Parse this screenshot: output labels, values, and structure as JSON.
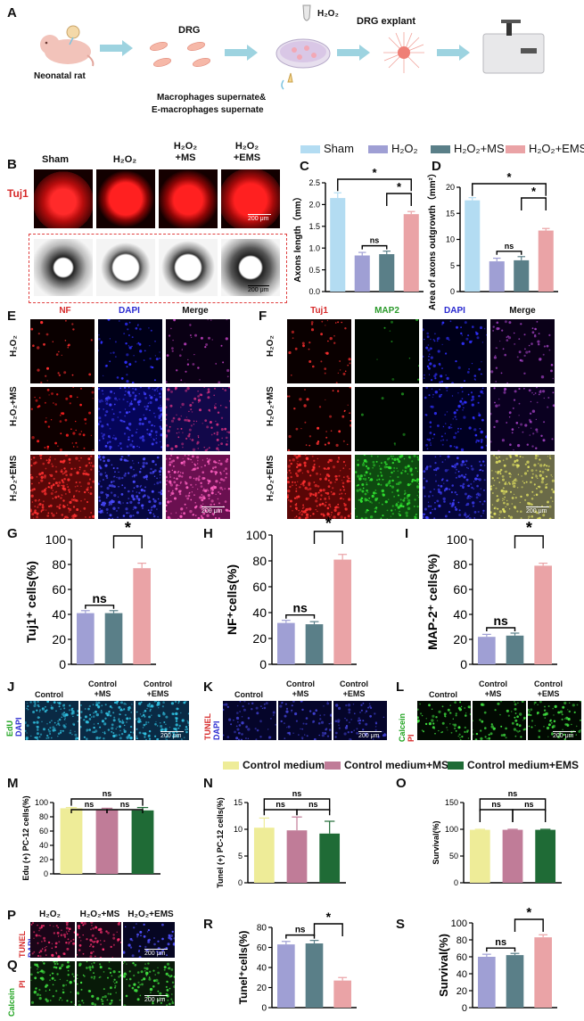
{
  "panels": {
    "A": "A",
    "B": "B",
    "C": "C",
    "D": "D",
    "E": "E",
    "F": "F",
    "G": "G",
    "H": "H",
    "I": "I",
    "J": "J",
    "K": "K",
    "L": "L",
    "M": "M",
    "N": "N",
    "O": "O",
    "P": "P",
    "Q": "Q",
    "R": "R",
    "S": "S"
  },
  "schematic": {
    "rat": "Neonatal rat",
    "drg": "DRG",
    "h2o2": "H₂O₂",
    "explant": "DRG explant",
    "supernate1": "Macrophages supernate&",
    "supernate2": "E-macrophages supernate"
  },
  "legend_top": [
    {
      "label": "Sham",
      "color": "#b3dcf2"
    },
    {
      "label": "H₂O₂",
      "color": "#9f9fd4"
    },
    {
      "label": "H₂O₂+MS",
      "color": "#5a7f88"
    },
    {
      "label": "H₂O₂+EMS",
      "color": "#eaa3a6"
    }
  ],
  "legend_mid": [
    {
      "label": "Control medium",
      "color": "#eeec98"
    },
    {
      "label": "Control medium+MS",
      "color": "#c07c98"
    },
    {
      "label": "Control medium+EMS",
      "color": "#1f6b36"
    }
  ],
  "panelB": {
    "row_label": "Tuj1",
    "columns": [
      "Sham",
      "H₂O₂",
      "H₂O₂\n+MS",
      "H₂O₂\n+EMS"
    ],
    "scalebar": "200 μm"
  },
  "panelE": {
    "columns": [
      "NF",
      "DAPI",
      "Merge"
    ],
    "rows": [
      "H₂O₂",
      "H₂O₂+MS",
      "H₂O₂+EMS"
    ],
    "scalebar": "200 μm"
  },
  "panelF": {
    "columns": [
      "Tuj1",
      "MAP2",
      "DAPI",
      "Merge"
    ],
    "rows": [
      "H₂O₂",
      "H₂O₂+MS",
      "H₂O₂+EMS"
    ],
    "scalebar": "200 μm"
  },
  "panelJ": {
    "columns": [
      "Control",
      "Control\n+MS",
      "Control\n+EMS"
    ],
    "side": [
      "EdU",
      "DAPI"
    ],
    "scalebar": "200 μm"
  },
  "panelK": {
    "columns": [
      "Control",
      "Control\n+MS",
      "Control\n+EMS"
    ],
    "side": [
      "TUNEL",
      "DAPI"
    ],
    "scalebar": "200 μm"
  },
  "panelL": {
    "columns": [
      "Control",
      "Control\n+MS",
      "Control\n+EMS"
    ],
    "side": [
      "Calcein",
      "PI"
    ],
    "scalebar": "200 μm"
  },
  "panelPQ": {
    "columns": [
      "H₂O₂",
      "H₂O₂+MS",
      "H₂O₂+EMS"
    ],
    "P_side": [
      "TUNEL",
      "DAPI"
    ],
    "Q_side": [
      "Calcein",
      "PI"
    ],
    "scalebar": "200 μm"
  },
  "chart_data": [
    {
      "id": "C",
      "type": "bar",
      "categories": [
        "Sham",
        "H₂O₂",
        "H₂O₂+MS",
        "H₂O₂+EMS"
      ],
      "values": [
        2.15,
        0.83,
        0.86,
        1.78
      ],
      "errors": [
        0.12,
        0.07,
        0.07,
        0.06
      ],
      "ylabel": "Axons length（mm）",
      "ylim": [
        0,
        2.5
      ],
      "yticks": [
        "0.0",
        "0.5",
        "1.0",
        "1.5",
        "2.0",
        "2.5"
      ],
      "annotations": [
        "*",
        "*",
        "ns"
      ]
    },
    {
      "id": "D",
      "type": "bar",
      "categories": [
        "Sham",
        "H₂O₂",
        "H₂O₂+MS",
        "H₂O₂+EMS"
      ],
      "values": [
        17.5,
        5.8,
        6.0,
        11.7
      ],
      "errors": [
        0.5,
        0.6,
        0.7,
        0.4
      ],
      "ylabel": "Area of axons outgrowth（mm²）",
      "ylim": [
        0,
        20
      ],
      "yticks": [
        "0",
        "5",
        "10",
        "15",
        "20"
      ],
      "annotations": [
        "*",
        "*",
        "ns"
      ]
    },
    {
      "id": "G",
      "type": "bar",
      "categories": [
        "H₂O₂",
        "H₂O₂+MS",
        "H₂O₂+EMS"
      ],
      "values": [
        41,
        41,
        77
      ],
      "errors": [
        2,
        2,
        4
      ],
      "ylabel": "Tuj1⁺ cells(%)",
      "ylim": [
        0,
        100
      ],
      "yticks": [
        "0",
        "20",
        "40",
        "60",
        "80",
        "100"
      ],
      "annotations": [
        "*",
        "ns"
      ]
    },
    {
      "id": "H",
      "type": "bar",
      "categories": [
        "H₂O₂",
        "H₂O₂+MS",
        "H₂O₂+EMS"
      ],
      "values": [
        32,
        31,
        81
      ],
      "errors": [
        2,
        2,
        4
      ],
      "ylabel": "NF⁺cells(%)",
      "ylim": [
        0,
        100
      ],
      "yticks": [
        "0",
        "20",
        "40",
        "60",
        "80",
        "100"
      ],
      "annotations": [
        "*",
        "ns"
      ]
    },
    {
      "id": "I",
      "type": "bar",
      "categories": [
        "H₂O₂",
        "H₂O₂+MS",
        "H₂O₂+EMS"
      ],
      "values": [
        22,
        23,
        79
      ],
      "errors": [
        2,
        2,
        2
      ],
      "ylabel": "MAP-2⁺ cells(%)",
      "ylim": [
        0,
        100
      ],
      "yticks": [
        "0",
        "20",
        "40",
        "60",
        "80",
        "100"
      ],
      "annotations": [
        "*",
        "ns"
      ]
    },
    {
      "id": "M",
      "type": "bar",
      "categories": [
        "Control medium",
        "Control medium+MS",
        "Control medium+EMS"
      ],
      "values": [
        92,
        90,
        89
      ],
      "errors": [
        1,
        2,
        4
      ],
      "ylabel": "Edu (+) PC-12 cells(%)",
      "ylim": [
        0,
        100
      ],
      "yticks": [
        "0",
        "20",
        "40",
        "60",
        "80",
        "100"
      ],
      "annotations": [
        "ns",
        "ns",
        "ns"
      ]
    },
    {
      "id": "N",
      "type": "bar",
      "categories": [
        "Control medium",
        "Control medium+MS",
        "Control medium+EMS"
      ],
      "values": [
        10.3,
        9.8,
        9.2
      ],
      "errors": [
        1.8,
        2.5,
        2.3
      ],
      "ylabel": "Tunel (+) PC-12 cells(%)",
      "ylim": [
        0,
        15
      ],
      "yticks": [
        "0",
        "5",
        "10",
        "15"
      ],
      "annotations": [
        "ns",
        "ns",
        "ns"
      ]
    },
    {
      "id": "O",
      "type": "bar",
      "categories": [
        "Control medium",
        "Control medium+MS",
        "Control medium+EMS"
      ],
      "values": [
        99,
        99,
        99
      ],
      "errors": [
        1,
        1,
        1
      ],
      "ylabel": "Survival(%)",
      "ylim": [
        0,
        150
      ],
      "yticks": [
        "0",
        "50",
        "100",
        "150"
      ],
      "annotations": [
        "ns",
        "ns",
        "ns"
      ]
    },
    {
      "id": "R",
      "type": "bar",
      "categories": [
        "H₂O₂",
        "H₂O₂+MS",
        "H₂O₂+EMS"
      ],
      "values": [
        63,
        64,
        27
      ],
      "errors": [
        3,
        3,
        3
      ],
      "ylabel": "Tunel⁺cells(%)",
      "ylim": [
        0,
        80
      ],
      "yticks": [
        "0",
        "20",
        "40",
        "60",
        "80"
      ],
      "annotations": [
        "*",
        "ns"
      ]
    },
    {
      "id": "S",
      "type": "bar",
      "categories": [
        "H₂O₂",
        "H₂O₂+MS",
        "H₂O₂+EMS"
      ],
      "values": [
        60,
        62,
        83
      ],
      "errors": [
        3,
        2,
        3
      ],
      "ylabel": "Survival(%)",
      "ylim": [
        0,
        100
      ],
      "yticks": [
        "0",
        "20",
        "40",
        "60",
        "80",
        "100"
      ],
      "annotations": [
        "*",
        "ns"
      ]
    }
  ]
}
